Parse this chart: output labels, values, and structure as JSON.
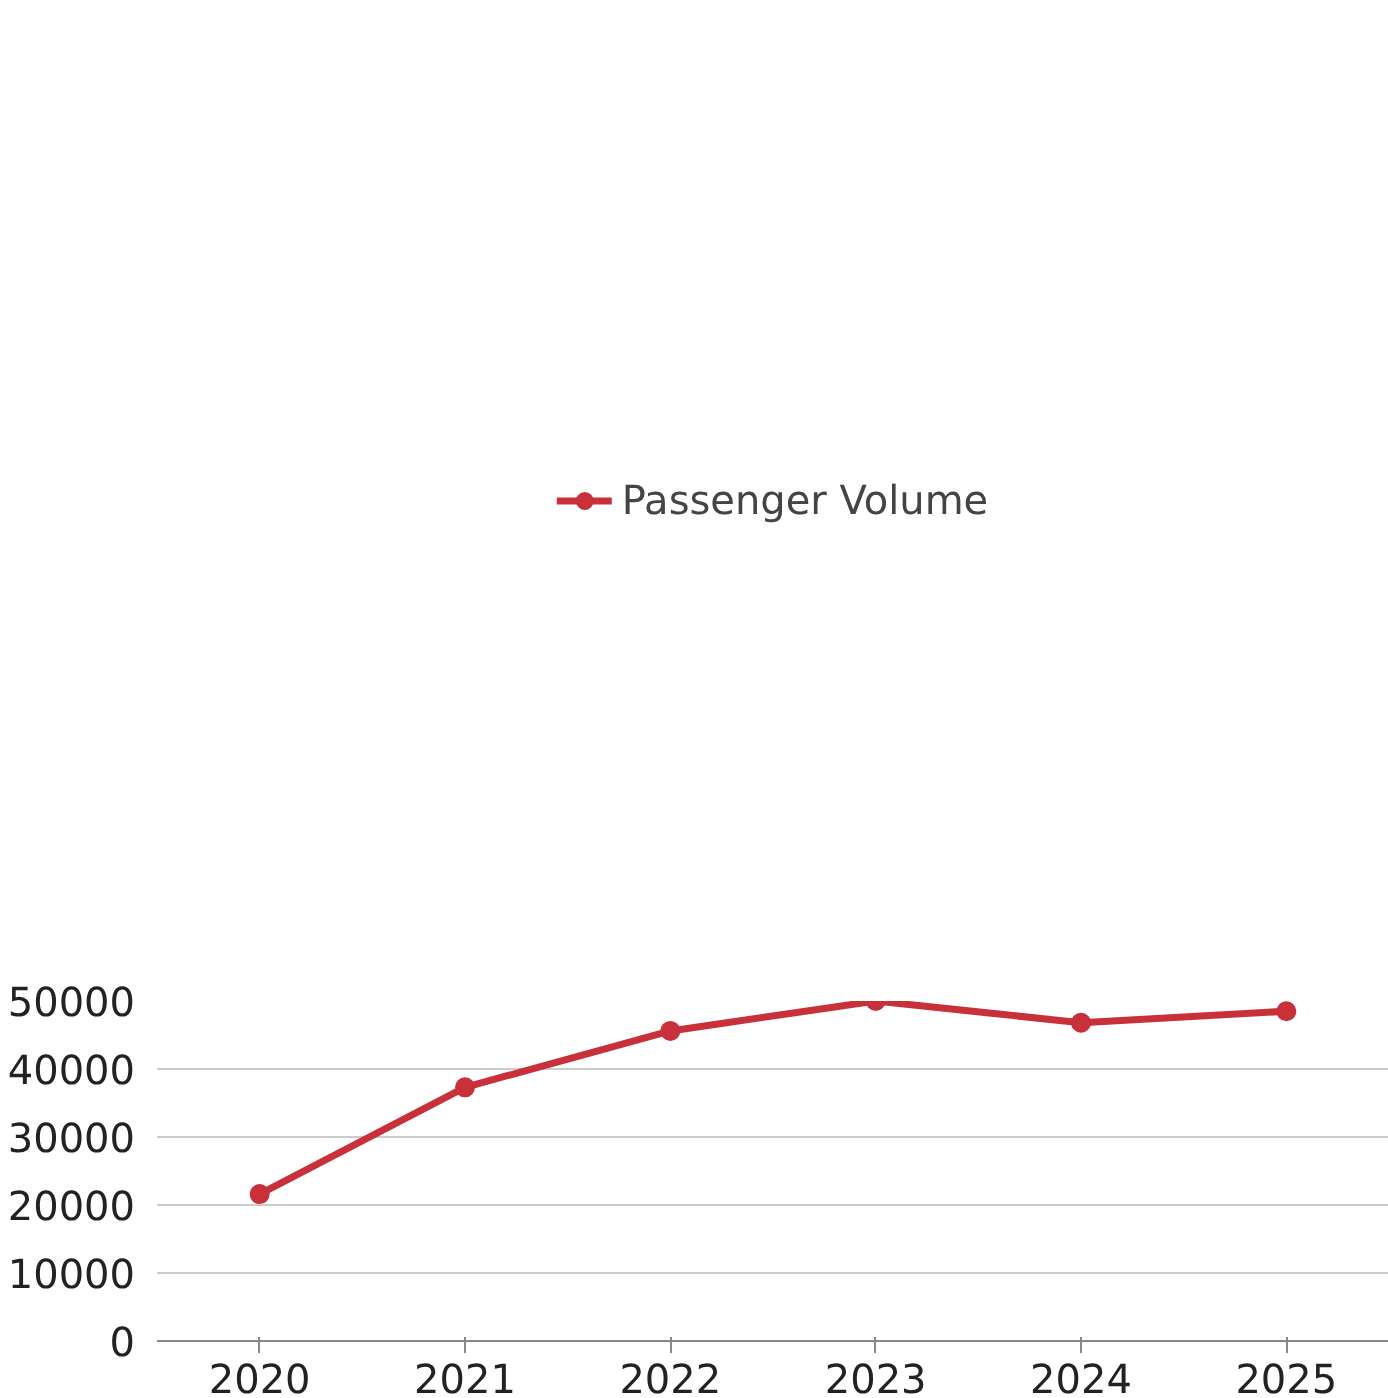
{
  "chart_data": {
    "type": "line",
    "categories": [
      "2020",
      "2021",
      "2022",
      "2023",
      "2024",
      "2025"
    ],
    "series": [
      {
        "name": "Passenger Volume",
        "color": "#c8303a",
        "values": [
          21600,
          37300,
          45600,
          50000,
          46800,
          48500
        ]
      }
    ],
    "ylim": [
      0,
      50000
    ],
    "yticks": [
      0,
      10000,
      20000,
      30000,
      40000,
      50000
    ],
    "grid": "y",
    "legend": "top",
    "marker": "circle",
    "line_style": "solid"
  }
}
